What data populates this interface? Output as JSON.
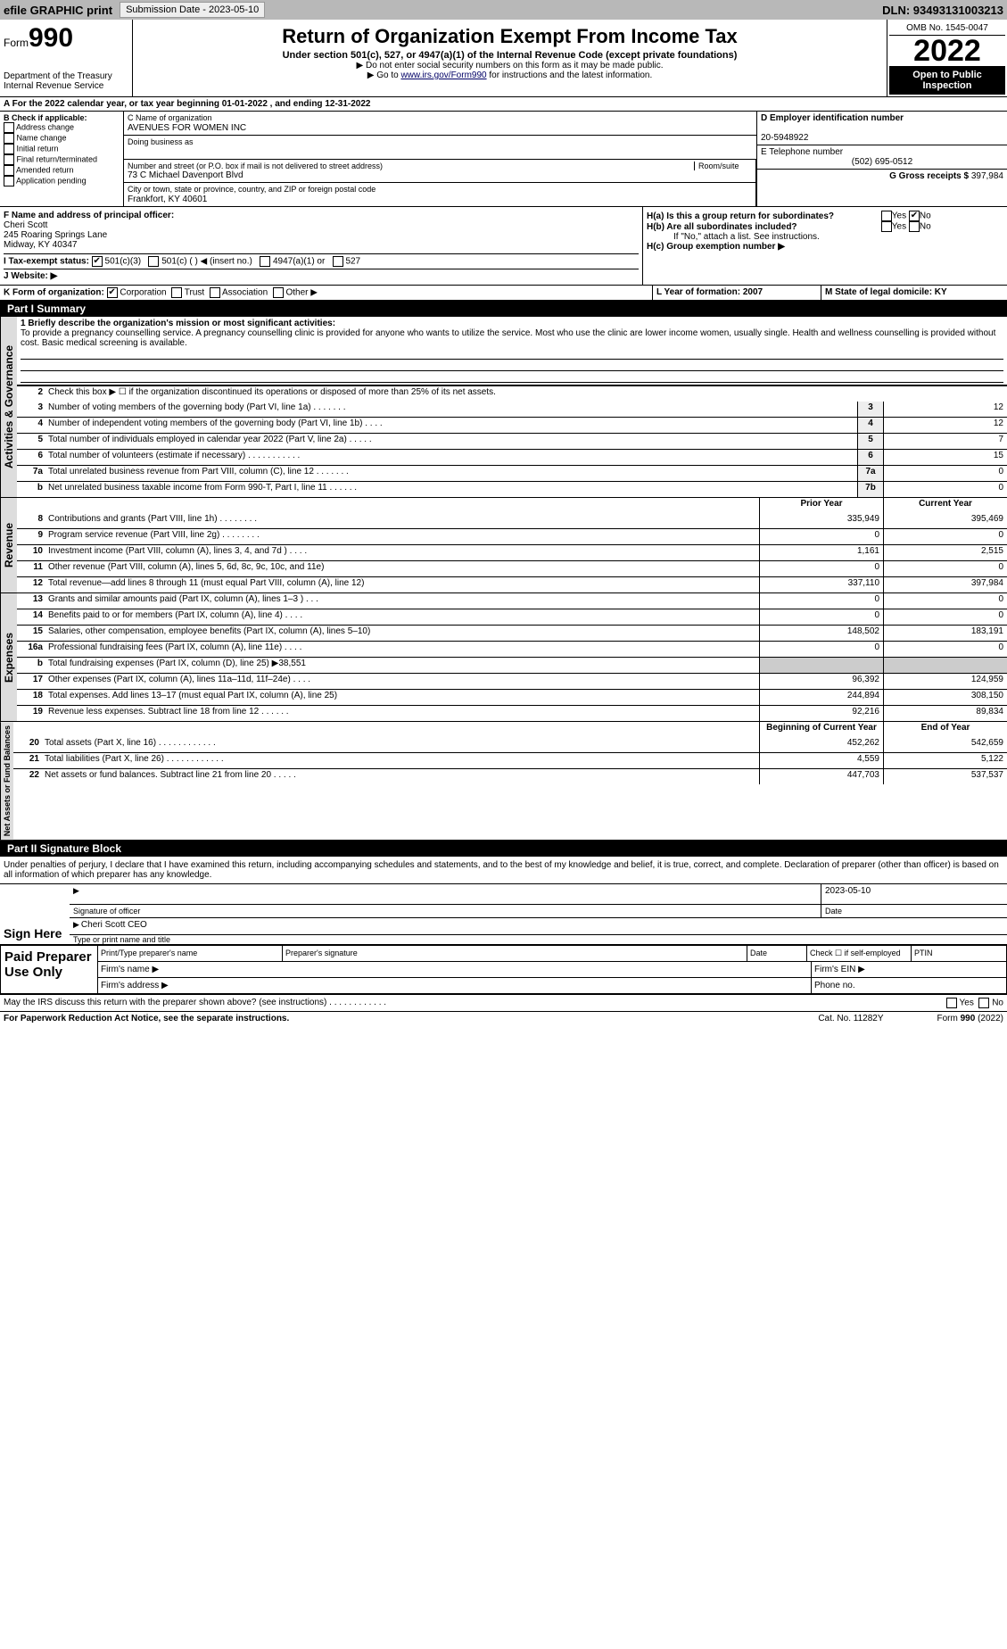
{
  "topbar": {
    "efile": "efile GRAPHIC print",
    "submission_btn": "Submission Date - 2023-05-10",
    "dln": "DLN: 93493131003213"
  },
  "header": {
    "form_label": "Form",
    "form_num": "990",
    "dept": "Department of the Treasury\nInternal Revenue Service",
    "title": "Return of Organization Exempt From Income Tax",
    "sub": "Under section 501(c), 527, or 4947(a)(1) of the Internal Revenue Code (except private foundations)",
    "note1": "▶ Do not enter social security numbers on this form as it may be made public.",
    "note2_pre": "▶ Go to ",
    "note2_link": "www.irs.gov/Form990",
    "note2_post": " for instructions and the latest information.",
    "omb": "OMB No. 1545-0047",
    "year": "2022",
    "open": "Open to Public Inspection"
  },
  "row_a": "A For the 2022 calendar year, or tax year beginning 01-01-2022    , and ending 12-31-2022",
  "col_b": {
    "heading": "B Check if applicable:",
    "opts": [
      "Address change",
      "Name change",
      "Initial return",
      "Final return/terminated",
      "Amended return",
      "Application pending"
    ]
  },
  "col_c": {
    "label": "C Name of organization",
    "name": "AVENUES FOR WOMEN INC",
    "dba_label": "Doing business as",
    "street_label": "Number and street (or P.O. box if mail is not delivered to street address)",
    "room_label": "Room/suite",
    "street": "73 C Michael Davenport Blvd",
    "city_label": "City or town, state or province, country, and ZIP or foreign postal code",
    "city": "Frankfort, KY  40601"
  },
  "col_d": {
    "label": "D Employer identification number",
    "val": "20-5948922"
  },
  "col_e": {
    "label": "E Telephone number",
    "val": "(502) 695-0512"
  },
  "col_g": {
    "label": "G Gross receipts $",
    "val": "397,984"
  },
  "row_f": {
    "label": "F  Name and address of principal officer:",
    "name": "Cheri Scott",
    "addr1": "245 Roaring Springs Lane",
    "addr2": "Midway, KY  40347"
  },
  "row_h": {
    "ha": "H(a)  Is this a group return for subordinates?",
    "hb": "H(b)  Are all subordinates included?",
    "hb_note": "If \"No,\" attach a list. See instructions.",
    "hc": "H(c)  Group exemption number ▶",
    "yes": "Yes",
    "no": "No"
  },
  "row_i": {
    "label": "I  Tax-exempt status:",
    "o1": "501(c)(3)",
    "o2": "501(c) (   ) ◀ (insert no.)",
    "o3": "4947(a)(1) or",
    "o4": "527"
  },
  "row_j": "J  Website: ▶",
  "row_k": {
    "label": "K Form of organization:",
    "o1": "Corporation",
    "o2": "Trust",
    "o3": "Association",
    "o4": "Other ▶"
  },
  "row_l": "L Year of formation: 2007",
  "row_m": "M State of legal domicile: KY",
  "part1": {
    "title": "Part I      Summary",
    "q1": "1  Briefly describe the organization's mission or most significant activities:",
    "mission": "To provide a pregnancy counselling service. A pregnancy counselling clinic is provided for anyone who wants to utilize the service. Most who use the clinic are lower income women, usually single. Health and wellness counselling is provided without cost. Basic medical screening is available.",
    "q2": "Check this box ▶ ☐  if the organization discontinued its operations or disposed of more than 25% of its net assets.",
    "tabs": {
      "gov": "Activities & Governance",
      "rev": "Revenue",
      "exp": "Expenses",
      "net": "Net Assets or Fund Balances"
    },
    "gov_lines": [
      {
        "n": "3",
        "d": "Number of voting members of the governing body (Part VI, line 1a)   .    .    .    .    .    .    .",
        "c": "3",
        "v": "12"
      },
      {
        "n": "4",
        "d": "Number of independent voting members of the governing body (Part VI, line 1b)    .    .    .    .",
        "c": "4",
        "v": "12"
      },
      {
        "n": "5",
        "d": "Total number of individuals employed in calendar year 2022 (Part V, line 2a)   .    .    .    .    .",
        "c": "5",
        "v": "7"
      },
      {
        "n": "6",
        "d": "Total number of volunteers (estimate if necessary)    .    .    .    .    .    .    .    .    .    .    .",
        "c": "6",
        "v": "15"
      },
      {
        "n": "7a",
        "d": "Total unrelated business revenue from Part VIII, column (C), line 12   .    .    .    .    .    .    .",
        "c": "7a",
        "v": "0"
      },
      {
        "n": "b",
        "d": "Net unrelated business taxable income from Form 990-T, Part I, line 11    .    .    .    .    .    .",
        "c": "7b",
        "v": "0"
      }
    ],
    "hdr_prior": "Prior Year",
    "hdr_curr": "Current Year",
    "rev_lines": [
      {
        "n": "8",
        "d": "Contributions and grants (Part VIII, line 1h)    .    .    .    .    .    .    .    .",
        "p": "335,949",
        "c": "395,469"
      },
      {
        "n": "9",
        "d": "Program service revenue (Part VIII, line 2g)    .    .    .    .    .    .    .    .",
        "p": "0",
        "c": "0"
      },
      {
        "n": "10",
        "d": "Investment income (Part VIII, column (A), lines 3, 4, and 7d )    .    .    .    .",
        "p": "1,161",
        "c": "2,515"
      },
      {
        "n": "11",
        "d": "Other revenue (Part VIII, column (A), lines 5, 6d, 8c, 9c, 10c, and 11e)",
        "p": "0",
        "c": "0"
      },
      {
        "n": "12",
        "d": "Total revenue—add lines 8 through 11 (must equal Part VIII, column (A), line 12)",
        "p": "337,110",
        "c": "397,984"
      }
    ],
    "exp_lines": [
      {
        "n": "13",
        "d": "Grants and similar amounts paid (Part IX, column (A), lines 1–3 )   .    .    .",
        "p": "0",
        "c": "0"
      },
      {
        "n": "14",
        "d": "Benefits paid to or for members (Part IX, column (A), line 4)   .    .    .    .",
        "p": "0",
        "c": "0"
      },
      {
        "n": "15",
        "d": "Salaries, other compensation, employee benefits (Part IX, column (A), lines 5–10)",
        "p": "148,502",
        "c": "183,191"
      },
      {
        "n": "16a",
        "d": "Professional fundraising fees (Part IX, column (A), line 11e)   .    .    .    .",
        "p": "0",
        "c": "0"
      },
      {
        "n": "b",
        "d": "Total fundraising expenses (Part IX, column (D), line 25) ▶38,551",
        "p": "",
        "c": "",
        "grey": true
      },
      {
        "n": "17",
        "d": "Other expenses (Part IX, column (A), lines 11a–11d, 11f–24e)    .    .    .    .",
        "p": "96,392",
        "c": "124,959"
      },
      {
        "n": "18",
        "d": "Total expenses. Add lines 13–17 (must equal Part IX, column (A), line 25)",
        "p": "244,894",
        "c": "308,150"
      },
      {
        "n": "19",
        "d": "Revenue less expenses. Subtract line 18 from line 12   .    .    .    .    .    .",
        "p": "92,216",
        "c": "89,834"
      }
    ],
    "hdr_begin": "Beginning of Current Year",
    "hdr_end": "End of Year",
    "net_lines": [
      {
        "n": "20",
        "d": "Total assets (Part X, line 16)   .    .    .    .    .    .    .    .    .    .    .    .",
        "p": "452,262",
        "c": "542,659"
      },
      {
        "n": "21",
        "d": "Total liabilities (Part X, line 26)   .    .    .    .    .    .    .    .    .    .    .    .",
        "p": "4,559",
        "c": "5,122"
      },
      {
        "n": "22",
        "d": "Net assets or fund balances. Subtract line 21 from line 20   .    .    .    .    .",
        "p": "447,703",
        "c": "537,537"
      }
    ]
  },
  "part2": {
    "title": "Part II      Signature Block",
    "decl": "Under penalties of perjury, I declare that I have examined this return, including accompanying schedules and statements, and to the best of my knowledge and belief, it is true, correct, and complete. Declaration of preparer (other than officer) is based on all information of which preparer has any knowledge.",
    "sign_here": "Sign Here",
    "sig_officer": "Signature of officer",
    "sig_date": "2023-05-10",
    "date_lbl": "Date",
    "name_title": "Cheri Scott CEO",
    "type_lbl": "Type or print name and title",
    "paid": "Paid Preparer Use Only",
    "p_name": "Print/Type preparer's name",
    "p_sig": "Preparer's signature",
    "p_date": "Date",
    "p_check": "Check ☐ if self-employed",
    "p_ptin": "PTIN",
    "firm_name": "Firm's name    ▶",
    "firm_ein": "Firm's EIN ▶",
    "firm_addr": "Firm's address ▶",
    "phone": "Phone no.",
    "may_irs": "May the IRS discuss this return with the preparer shown above? (see instructions)    .    .    .    .    .    .    .    .    .    .    .    .",
    "yes": "Yes",
    "no": "No"
  },
  "foot": {
    "pra": "For Paperwork Reduction Act Notice, see the separate instructions.",
    "cat": "Cat. No. 11282Y",
    "form": "Form 990 (2022)"
  }
}
